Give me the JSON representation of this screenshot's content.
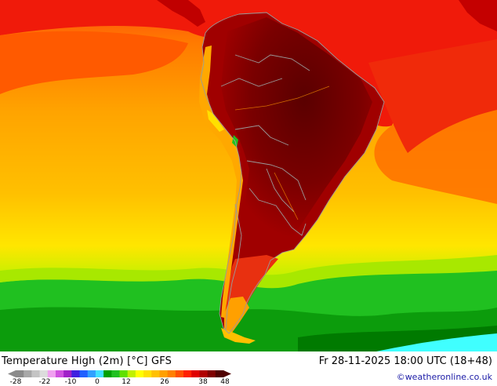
{
  "map": {
    "title": "Temperature High (2m) [°C] GFS",
    "valid_time": "Fr 28-11-2025 18:00 UTC (18+48)",
    "credit": "©weatheronline.co.uk",
    "legend": {
      "ticks": [
        "-28",
        "-22",
        "-10",
        "0",
        "12",
        "26",
        "38",
        "48"
      ],
      "colors": [
        "#8a8a8a",
        "#a8a8a8",
        "#c4c4c4",
        "#dcdcdc",
        "#f0a0f0",
        "#d050e0",
        "#a020c8",
        "#4020e0",
        "#2060ff",
        "#30a0ff",
        "#40e0ff",
        "#00a000",
        "#20c020",
        "#60e000",
        "#c0f000",
        "#ffff00",
        "#ffe000",
        "#ffc000",
        "#ffa000",
        "#ff8000",
        "#ff5000",
        "#ff2000",
        "#e00000",
        "#b00000",
        "#800000",
        "#500000"
      ]
    },
    "colors": {
      "hot": "#6e0000",
      "red": "#e01010",
      "orange": "#ff9a00",
      "yellow": "#ffd800",
      "green": "#20c020",
      "darkgreen": "#008800",
      "cyan": "#40ffff",
      "border": "#9a9a9a"
    }
  }
}
